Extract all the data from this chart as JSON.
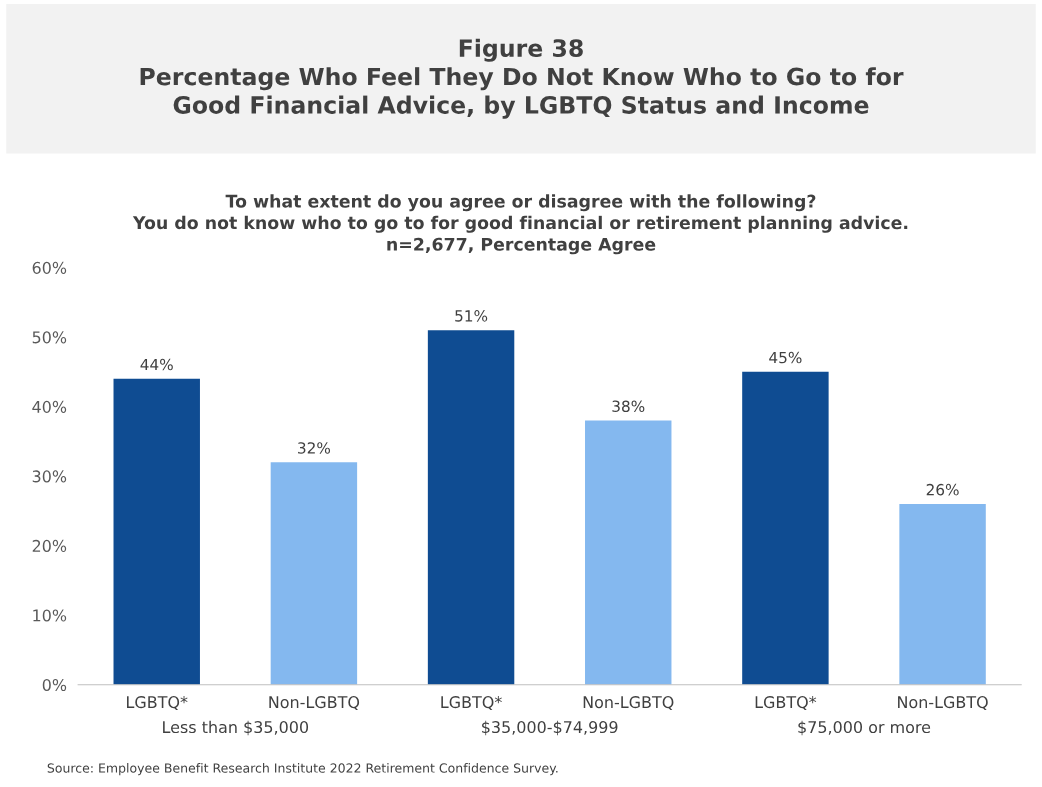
{
  "chart_data": {
    "type": "bar",
    "title": "Figure 38\nPercentage Who Feel They Do Not Know Who to Go to for\nGood Financial Advice, by LGBTQ Status and Income",
    "subtitle": "To what extent do you agree or disagree with the following?\nYou do not know who to go to for good financial or retirement planning advice.\nn=2,677, Percentage Agree",
    "categories": [
      "LGBTQ*",
      "Non-LGBTQ",
      "LGBTQ*",
      "Non-LGBTQ",
      "LGBTQ*",
      "Non-LGBTQ"
    ],
    "values": [
      44,
      32,
      51,
      38,
      45,
      26
    ],
    "value_labels": [
      "44%",
      "32%",
      "51%",
      "38%",
      "45%",
      "26%"
    ],
    "colors": [
      "#0f4c92",
      "#84b8ef",
      "#0f4c92",
      "#84b8ef",
      "#0f4c92",
      "#84b8ef"
    ],
    "ylim": [
      0,
      60
    ],
    "yticks": [
      {
        "value": 0,
        "label": "0%"
      },
      {
        "value": 10,
        "label": "10%"
      },
      {
        "value": 20,
        "label": "20%"
      },
      {
        "value": 30,
        "label": "30%"
      },
      {
        "value": 40,
        "label": "40%"
      },
      {
        "value": 50,
        "label": "50%"
      },
      {
        "value": 60,
        "label": "60%"
      }
    ],
    "grid": false,
    "legend": false,
    "annotations": [
      "Less than $35,000",
      "$35,000-$74,999",
      "$75,000 or more",
      "Source: Employee Benefit Research Institute 2022 Retirement Confidence Survey."
    ]
  }
}
